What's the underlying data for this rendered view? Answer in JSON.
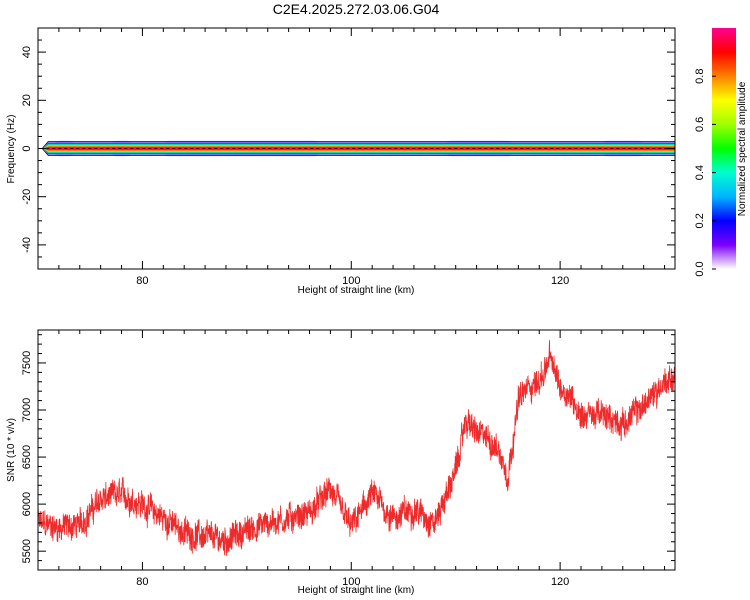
{
  "title": "C2E4.2025.272.03.06.G04",
  "chart_data": [
    {
      "type": "heatmap",
      "xlabel": "Height of straight line (km)",
      "ylabel": "Frequency (Hz)",
      "xlim": [
        70,
        131
      ],
      "ylim": [
        -50,
        50
      ],
      "x_ticks": [
        80,
        100,
        120
      ],
      "y_ticks": [
        -40,
        -20,
        0,
        20,
        40
      ],
      "signal_band": {
        "frequency": 0,
        "x_start": 70.5,
        "x_end": 131
      },
      "faint_halo_segments": [
        [
          71.5,
          73.5
        ],
        [
          77,
          79
        ],
        [
          82,
          97
        ],
        [
          109,
          115.5
        ],
        [
          124,
          128
        ]
      ],
      "colorbar": {
        "label": "Normalized spectral amplitude",
        "range": [
          0,
          1
        ],
        "ticks": [
          "0.0",
          "0.2",
          "0.4",
          "0.6",
          "0.8"
        ],
        "colors": [
          "#ffffff",
          "#7b00ff",
          "#0000ff",
          "#00b4ff",
          "#00ffd0",
          "#00ff00",
          "#a0ff00",
          "#ffff00",
          "#ff8000",
          "#ff0000",
          "#ff0090"
        ]
      }
    },
    {
      "type": "line",
      "xlabel": "Height of straight line (km)",
      "ylabel": "SNR (10 * v/v)",
      "xlim": [
        70,
        131
      ],
      "ylim": [
        5300,
        7850
      ],
      "x_ticks": [
        80,
        100,
        120
      ],
      "y_ticks": [
        5500,
        6000,
        6500,
        7000,
        7500
      ],
      "series": [
        {
          "color": "#ee2a2a",
          "x": [
            70,
            72,
            74,
            76,
            78,
            80,
            82,
            84,
            86,
            88,
            90,
            92,
            94,
            96,
            98,
            100,
            102,
            104,
            106,
            108,
            110,
            111,
            112,
            113,
            114,
            115,
            116,
            117,
            118,
            119,
            120,
            121,
            122,
            124,
            126,
            128,
            130,
            131
          ],
          "values": [
            5800,
            5750,
            5780,
            6050,
            6100,
            6000,
            5850,
            5700,
            5650,
            5620,
            5720,
            5800,
            5850,
            5900,
            6150,
            5750,
            6100,
            5850,
            5950,
            5800,
            6350,
            6900,
            6750,
            6700,
            6600,
            6300,
            7100,
            7250,
            7300,
            7550,
            7250,
            7150,
            6950,
            6950,
            6850,
            7050,
            7300,
            7350
          ],
          "noise_amplitude": 130
        }
      ]
    }
  ]
}
